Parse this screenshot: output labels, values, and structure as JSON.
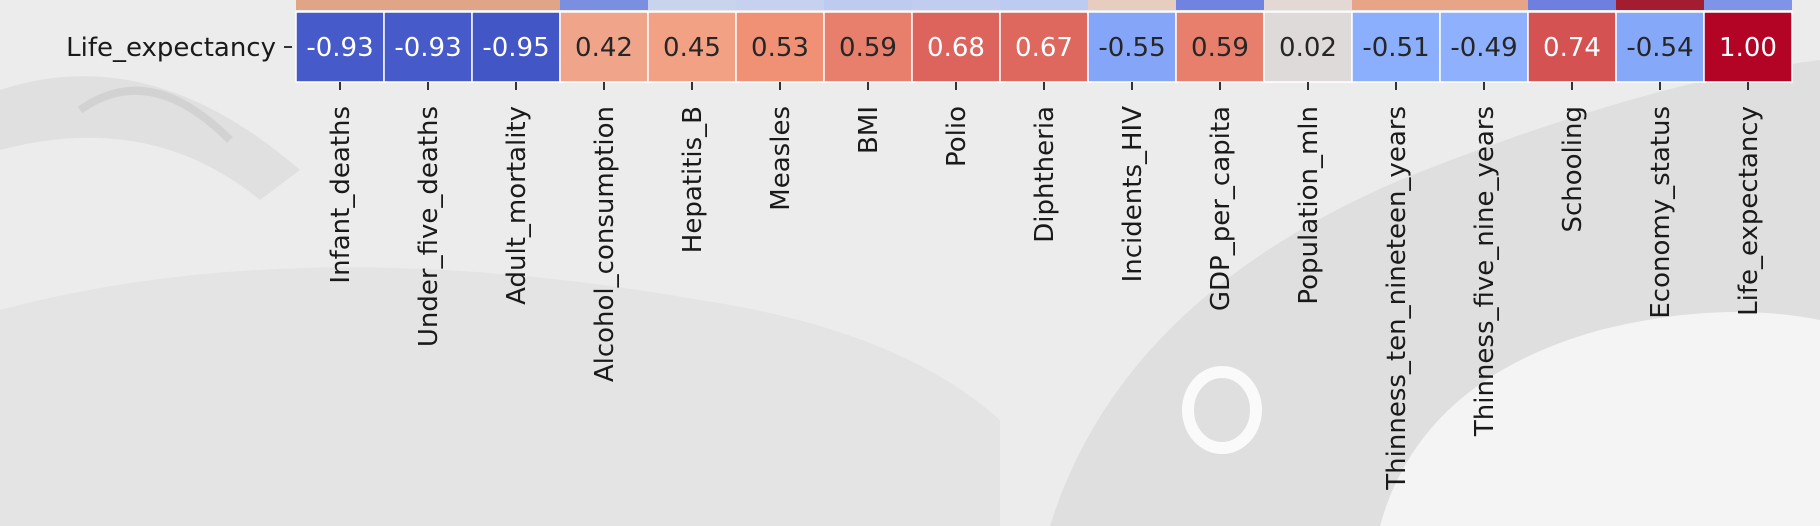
{
  "chart_data": {
    "type": "heatmap",
    "title": "",
    "row_labels": [
      "Life_expectancy"
    ],
    "column_labels": [
      "Infant_deaths",
      "Under_five_deaths",
      "Adult_mortality",
      "Alcohol_consumption",
      "Hepatitis_B",
      "Measles",
      "BMI",
      "Polio",
      "Diphtheria",
      "Incidents_HIV",
      "GDP_per_capita",
      "Population_mln",
      "Thinness_ten_nineteen_years",
      "Thinness_five_nine_years",
      "Schooling",
      "Economy_status",
      "Life_expectancy"
    ],
    "values": [
      [
        -0.93,
        -0.93,
        -0.95,
        0.42,
        0.45,
        0.53,
        0.59,
        0.68,
        0.67,
        -0.55,
        0.59,
        0.02,
        -0.51,
        -0.49,
        0.74,
        -0.54,
        1.0
      ]
    ],
    "value_labels": [
      [
        "-0.93",
        "-0.93",
        "-0.95",
        "0.42",
        "0.45",
        "0.53",
        "0.59",
        "0.68",
        "0.67",
        "-0.55",
        "0.59",
        "0.02",
        "-0.51",
        "-0.49",
        "0.74",
        "-0.54",
        "1.00"
      ]
    ],
    "colormap": "coolwarm",
    "vmin": -1,
    "vmax": 1,
    "partial_row_above_colors": [
      "#e0a486",
      "#e0a486",
      "#e0a486",
      "#7b8fe0",
      "#c8d3ee",
      "#c5d1ef",
      "#bdcbf1",
      "#c0cdf1",
      "#bccbf2",
      "#e6cdbf",
      "#7083e0",
      "#e4d8d4",
      "#e8a487",
      "#e8a487",
      "#6e7fe0",
      "#a11d2f",
      "#7f94e6"
    ]
  }
}
